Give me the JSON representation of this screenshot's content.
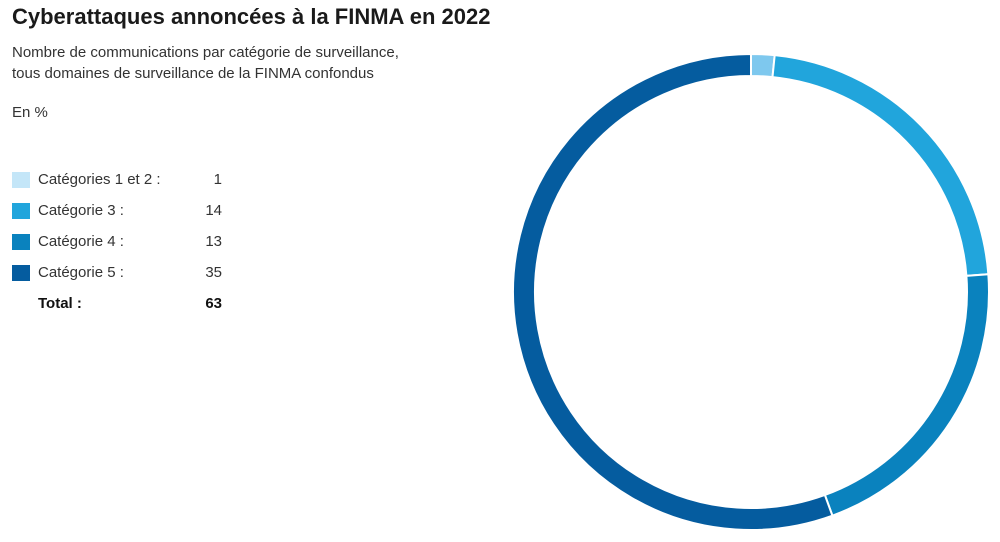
{
  "chart_data": {
    "type": "pie",
    "title": "Cyberattaques annoncées à la FINMA en 2022",
    "subtitle_line1": "Nombre de communications par catégorie de surveillance,",
    "subtitle_line2": "tous domaines de surveillance de la FINMA confondus",
    "unit": "En %",
    "donut": true,
    "start_angle_deg": 0,
    "direction": "clockwise",
    "categories": [
      {
        "label": "Catégories 1 et 2 :",
        "value": 1,
        "color": "#7ec8ee"
      },
      {
        "label": "Catégorie 3 :",
        "value": 14,
        "color": "#21a5dc"
      },
      {
        "label": "Catégorie 4 :",
        "value": 13,
        "color": "#0a82be"
      },
      {
        "label": "Catégorie 5 :",
        "value": 35,
        "color": "#055c9f"
      }
    ],
    "total": {
      "label": "Total :",
      "value": 63
    },
    "legend_swatch_colors": [
      "#c4e6f8",
      "#21a5dc",
      "#0a82be",
      "#055c9f"
    ]
  }
}
